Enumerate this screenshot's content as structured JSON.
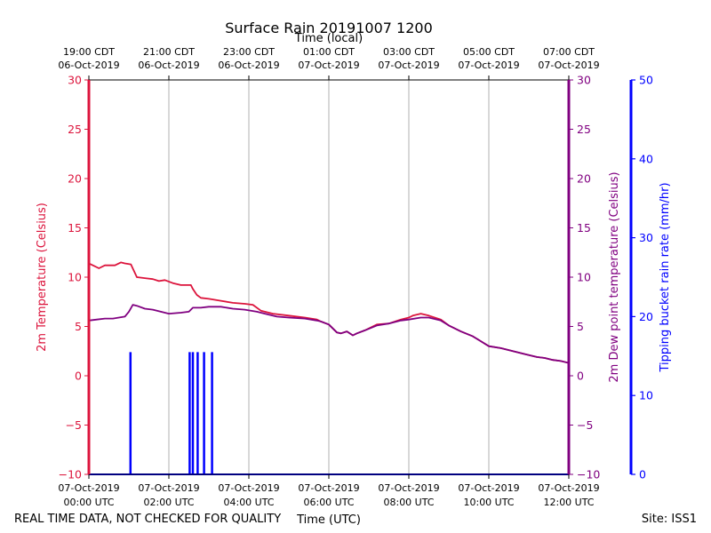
{
  "chart_data": {
    "type": "line",
    "title": "Surface Rain 20191007 1200",
    "top_axis_label": "Time (local)",
    "xlabel": "Time (UTC)",
    "footer_left": "REAL TIME DATA, NOT CHECKED FOR QUALITY",
    "footer_right": "Site: ISS1",
    "x_hours_range": [
      0,
      12
    ],
    "top_ticks": [
      {
        "hour": 0,
        "line1": "19:00 CDT",
        "line2": "06-Oct-2019"
      },
      {
        "hour": 2,
        "line1": "21:00 CDT",
        "line2": "06-Oct-2019"
      },
      {
        "hour": 4,
        "line1": "23:00 CDT",
        "line2": "06-Oct-2019"
      },
      {
        "hour": 6,
        "line1": "01:00 CDT",
        "line2": "07-Oct-2019"
      },
      {
        "hour": 8,
        "line1": "03:00 CDT",
        "line2": "07-Oct-2019"
      },
      {
        "hour": 10,
        "line1": "05:00 CDT",
        "line2": "07-Oct-2019"
      },
      {
        "hour": 12,
        "line1": "07:00 CDT",
        "line2": "07-Oct-2019"
      }
    ],
    "bottom_ticks": [
      {
        "hour": 0,
        "line1": "07-Oct-2019",
        "line2": "00:00 UTC"
      },
      {
        "hour": 2,
        "line1": "07-Oct-2019",
        "line2": "02:00 UTC"
      },
      {
        "hour": 4,
        "line1": "07-Oct-2019",
        "line2": "04:00 UTC"
      },
      {
        "hour": 6,
        "line1": "07-Oct-2019",
        "line2": "06:00 UTC"
      },
      {
        "hour": 8,
        "line1": "07-Oct-2019",
        "line2": "08:00 UTC"
      },
      {
        "hour": 10,
        "line1": "07-Oct-2019",
        "line2": "10:00 UTC"
      },
      {
        "hour": 12,
        "line1": "07-Oct-2019",
        "line2": "12:00 UTC"
      }
    ],
    "y_left": {
      "label": "2m Temperature (Celsius)",
      "ylim": [
        -10,
        30
      ],
      "ticks": [
        -10,
        -5,
        0,
        5,
        10,
        15,
        20,
        25,
        30
      ],
      "tick_labels": [
        "−10",
        "−5",
        "0",
        "5",
        "10",
        "15",
        "20",
        "25",
        "30"
      ],
      "color": "#dc143c"
    },
    "y_right1": {
      "label": "2m Dew point temperature (Celsius)",
      "ylim": [
        -10,
        30
      ],
      "ticks": [
        -10,
        -5,
        0,
        5,
        10,
        15,
        20,
        25,
        30
      ],
      "tick_labels": [
        "−10",
        "−5",
        "0",
        "5",
        "10",
        "15",
        "20",
        "25",
        "30"
      ],
      "color": "#800080"
    },
    "y_right2": {
      "label": "Tipping bucket rain rate (mm/hr)",
      "ylim": [
        0,
        50
      ],
      "ticks": [
        0,
        10,
        20,
        30,
        40,
        50
      ],
      "tick_labels": [
        "0",
        "10",
        "20",
        "30",
        "40",
        "50"
      ],
      "color": "#0000ff"
    },
    "series": [
      {
        "name": "2m Temperature",
        "axis": "left",
        "color": "#dc143c",
        "x": [
          0,
          0.1,
          0.25,
          0.4,
          0.5,
          0.65,
          0.8,
          0.9,
          1.05,
          1.2,
          1.4,
          1.6,
          1.75,
          1.9,
          2.1,
          2.3,
          2.45,
          2.55,
          2.6,
          2.7,
          2.8,
          3.0,
          3.3,
          3.6,
          3.9,
          4.1,
          4.3,
          4.6,
          5.0,
          5.4,
          5.7,
          5.8,
          6.0,
          6.2,
          6.3,
          6.45,
          6.6,
          6.7,
          6.9,
          7.2,
          7.5,
          7.8,
          8.0,
          8.1,
          8.3,
          8.5,
          8.8,
          9.0,
          9.3,
          9.6,
          9.8,
          10.0,
          10.3,
          10.6,
          10.9,
          11.2,
          11.4,
          11.6,
          11.8,
          12.0
        ],
        "values": [
          11.4,
          11.2,
          10.9,
          11.2,
          11.2,
          11.2,
          11.5,
          11.4,
          11.3,
          10.0,
          9.9,
          9.8,
          9.6,
          9.7,
          9.4,
          9.2,
          9.2,
          9.2,
          8.8,
          8.2,
          7.9,
          7.8,
          7.6,
          7.4,
          7.3,
          7.2,
          6.6,
          6.3,
          6.1,
          5.9,
          5.7,
          5.5,
          5.2,
          4.4,
          4.3,
          4.5,
          4.1,
          4.3,
          4.6,
          5.2,
          5.3,
          5.7,
          5.9,
          6.1,
          6.3,
          6.1,
          5.7,
          5.1,
          4.5,
          4.0,
          3.5,
          3.0,
          2.8,
          2.5,
          2.2,
          1.9,
          1.8,
          1.6,
          1.5,
          1.3
        ]
      },
      {
        "name": "2m Dew point temperature",
        "axis": "right1",
        "color": "#800080",
        "x": [
          0,
          0.2,
          0.4,
          0.6,
          0.9,
          1.0,
          1.1,
          1.2,
          1.4,
          1.6,
          1.8,
          2.0,
          2.3,
          2.5,
          2.6,
          2.8,
          3.0,
          3.3,
          3.6,
          3.9,
          4.2,
          4.4,
          4.7,
          5.0,
          5.4,
          5.7,
          5.8,
          6.0,
          6.2,
          6.3,
          6.45,
          6.6,
          6.7,
          6.9,
          7.2,
          7.5,
          7.8,
          8.0,
          8.3,
          8.5,
          8.8,
          9.0,
          9.3,
          9.6,
          9.8,
          10.0,
          10.3,
          10.6,
          10.9,
          11.2,
          11.4,
          11.6,
          11.8,
          12.0
        ],
        "values": [
          5.6,
          5.7,
          5.8,
          5.8,
          6.0,
          6.5,
          7.2,
          7.1,
          6.8,
          6.7,
          6.5,
          6.3,
          6.4,
          6.5,
          6.9,
          6.9,
          7.0,
          7.0,
          6.8,
          6.7,
          6.5,
          6.3,
          6.0,
          5.9,
          5.8,
          5.6,
          5.5,
          5.2,
          4.4,
          4.3,
          4.5,
          4.1,
          4.3,
          4.6,
          5.1,
          5.3,
          5.6,
          5.7,
          5.9,
          5.9,
          5.6,
          5.1,
          4.5,
          4.0,
          3.5,
          3.0,
          2.8,
          2.5,
          2.2,
          1.9,
          1.8,
          1.6,
          1.5,
          1.3
        ]
      },
      {
        "name": "Tipping bucket rain rate",
        "axis": "right2",
        "color": "#0000ff",
        "type": "spikes",
        "x": [
          1.04,
          2.52,
          2.6,
          2.72,
          2.88,
          3.08
        ],
        "values": [
          15.5,
          15.5,
          15.5,
          15.5,
          15.5,
          15.5
        ]
      }
    ]
  }
}
